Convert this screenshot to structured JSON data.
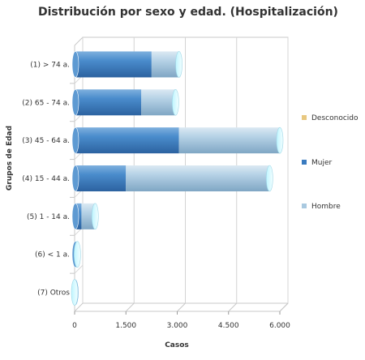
{
  "chart_data": {
    "type": "bar",
    "orientation": "horizontal",
    "stacked": true,
    "style": "3d-cylinder",
    "title": "Distribución por sexo y edad. (Hospitalización)",
    "xlabel": "Casos",
    "ylabel": "Grupos de Edad",
    "categories": [
      "(1) > 74 a.",
      "(2) 65 - 74 a.",
      "(3) 45 - 64 a.",
      "(4) 15 - 44 a.",
      "(5) 1 - 14 a.",
      "(6) < 1 a.",
      "(7) Otros"
    ],
    "series": [
      {
        "name": "Mujer",
        "color": "#3a7bbf",
        "values": [
          2250,
          1950,
          3050,
          1500,
          200,
          0,
          0
        ]
      },
      {
        "name": "Hombre",
        "color": "#a9c9e0",
        "values": [
          800,
          1000,
          2950,
          4200,
          400,
          80,
          0
        ]
      },
      {
        "name": "Desconocido",
        "color": "#e8c880",
        "values": [
          0,
          0,
          0,
          0,
          0,
          0,
          0
        ]
      }
    ],
    "xlim": [
      0,
      6000
    ],
    "xticks": [
      0,
      1500,
      3000,
      4500,
      6000
    ],
    "xtick_labels": [
      "0",
      "1.500",
      "3.000",
      "4.500",
      "6.000"
    ],
    "legend": {
      "placement": "right",
      "entries": [
        {
          "name": "Desconocido",
          "color": "#e8c880"
        },
        {
          "name": "Mujer",
          "color": "#3a7bbf"
        },
        {
          "name": "Hombre",
          "color": "#a9c9e0"
        }
      ]
    },
    "grid": true
  }
}
